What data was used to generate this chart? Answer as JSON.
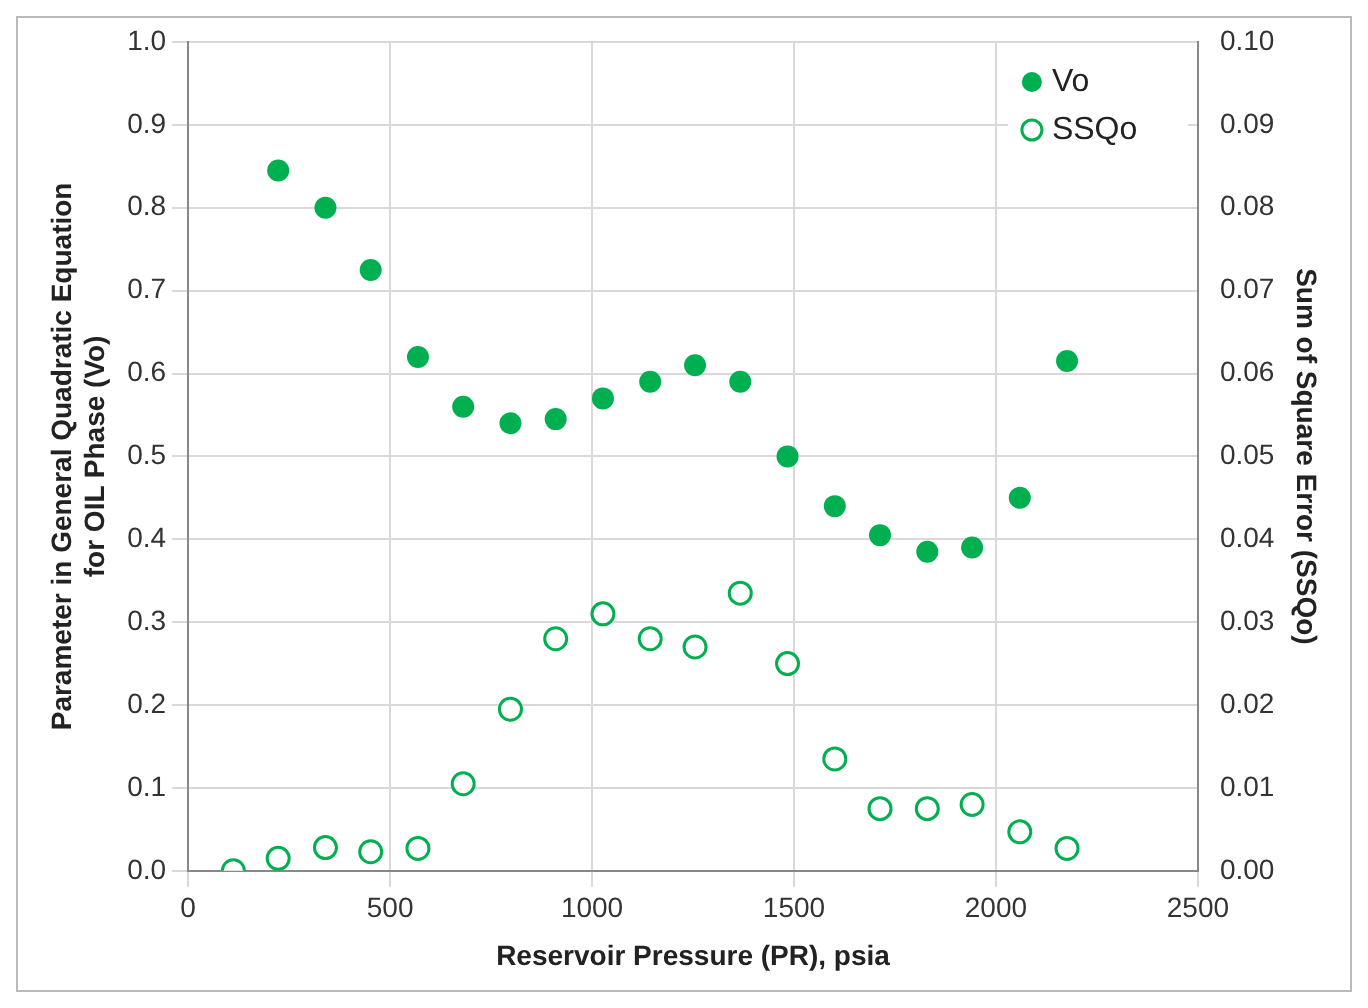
{
  "chart_data": {
    "type": "scatter",
    "xlabel": "Reservoir Pressure (PR), psia",
    "ylabel": "Parameter in General Quadratic Equation\nfor OIL Phase (Vo)",
    "y2label": "Sum of Square Error (SSQo)",
    "xlim": [
      0,
      2500
    ],
    "xticks": [
      0,
      500,
      1000,
      1500,
      2000,
      2500
    ],
    "ylim": [
      0,
      1
    ],
    "yticks": [
      {
        "value": 0,
        "label": "0.0"
      },
      0.1,
      0.2,
      0.3,
      0.4,
      0.5,
      0.6,
      0.7,
      0.8,
      0.9,
      {
        "value": 1,
        "label": "1.0"
      }
    ],
    "y2lim": [
      0,
      0.1
    ],
    "y2ticks": [
      {
        "value": 0,
        "label": "0.00"
      },
      {
        "value": 0.01,
        "label": "0.01"
      },
      {
        "value": 0.02,
        "label": "0.02"
      },
      {
        "value": 0.03,
        "label": "0.03"
      },
      {
        "value": 0.04,
        "label": "0.04"
      },
      {
        "value": 0.05,
        "label": "0.05"
      },
      {
        "value": 0.06,
        "label": "0.06"
      },
      {
        "value": 0.07,
        "label": "0.07"
      },
      {
        "value": 0.08,
        "label": "0.08"
      },
      {
        "value": 0.09,
        "label": "0.09"
      },
      {
        "value": 0.1,
        "label": "0.10"
      }
    ],
    "grid": true,
    "legend": "top right",
    "series": [
      {
        "name": "Vo",
        "color": "#00b050",
        "marker": "circle",
        "x": [
          223,
          340,
          452,
          569,
          681,
          798,
          910,
          1027,
          1144,
          1255,
          1367,
          1484,
          1601,
          1713,
          1830,
          1941,
          2059,
          2176
        ],
        "values": [
          0.845,
          0.8,
          0.725,
          0.62,
          0.56,
          0.54,
          0.545,
          0.57,
          0.59,
          0.61,
          0.59,
          0.5,
          0.44,
          0.405,
          0.385,
          0.39,
          0.45,
          0.615
        ]
      },
      {
        "name": "SSQo",
        "color": "#00b050",
        "marker": "circle",
        "axis": "y2",
        "x": [
          112,
          223,
          340,
          452,
          569,
          681,
          798,
          910,
          1027,
          1144,
          1255,
          1367,
          1484,
          1601,
          1713,
          1830,
          1941,
          2059,
          2176
        ],
        "values": [
          0.0,
          0.0015,
          0.0028,
          0.0023,
          0.0027,
          0.0105,
          0.0195,
          0.028,
          0.031,
          0.028,
          0.027,
          0.0335,
          0.025,
          0.0135,
          0.0075,
          0.0075,
          0.008,
          0.0047,
          0.0027
        ]
      }
    ]
  }
}
